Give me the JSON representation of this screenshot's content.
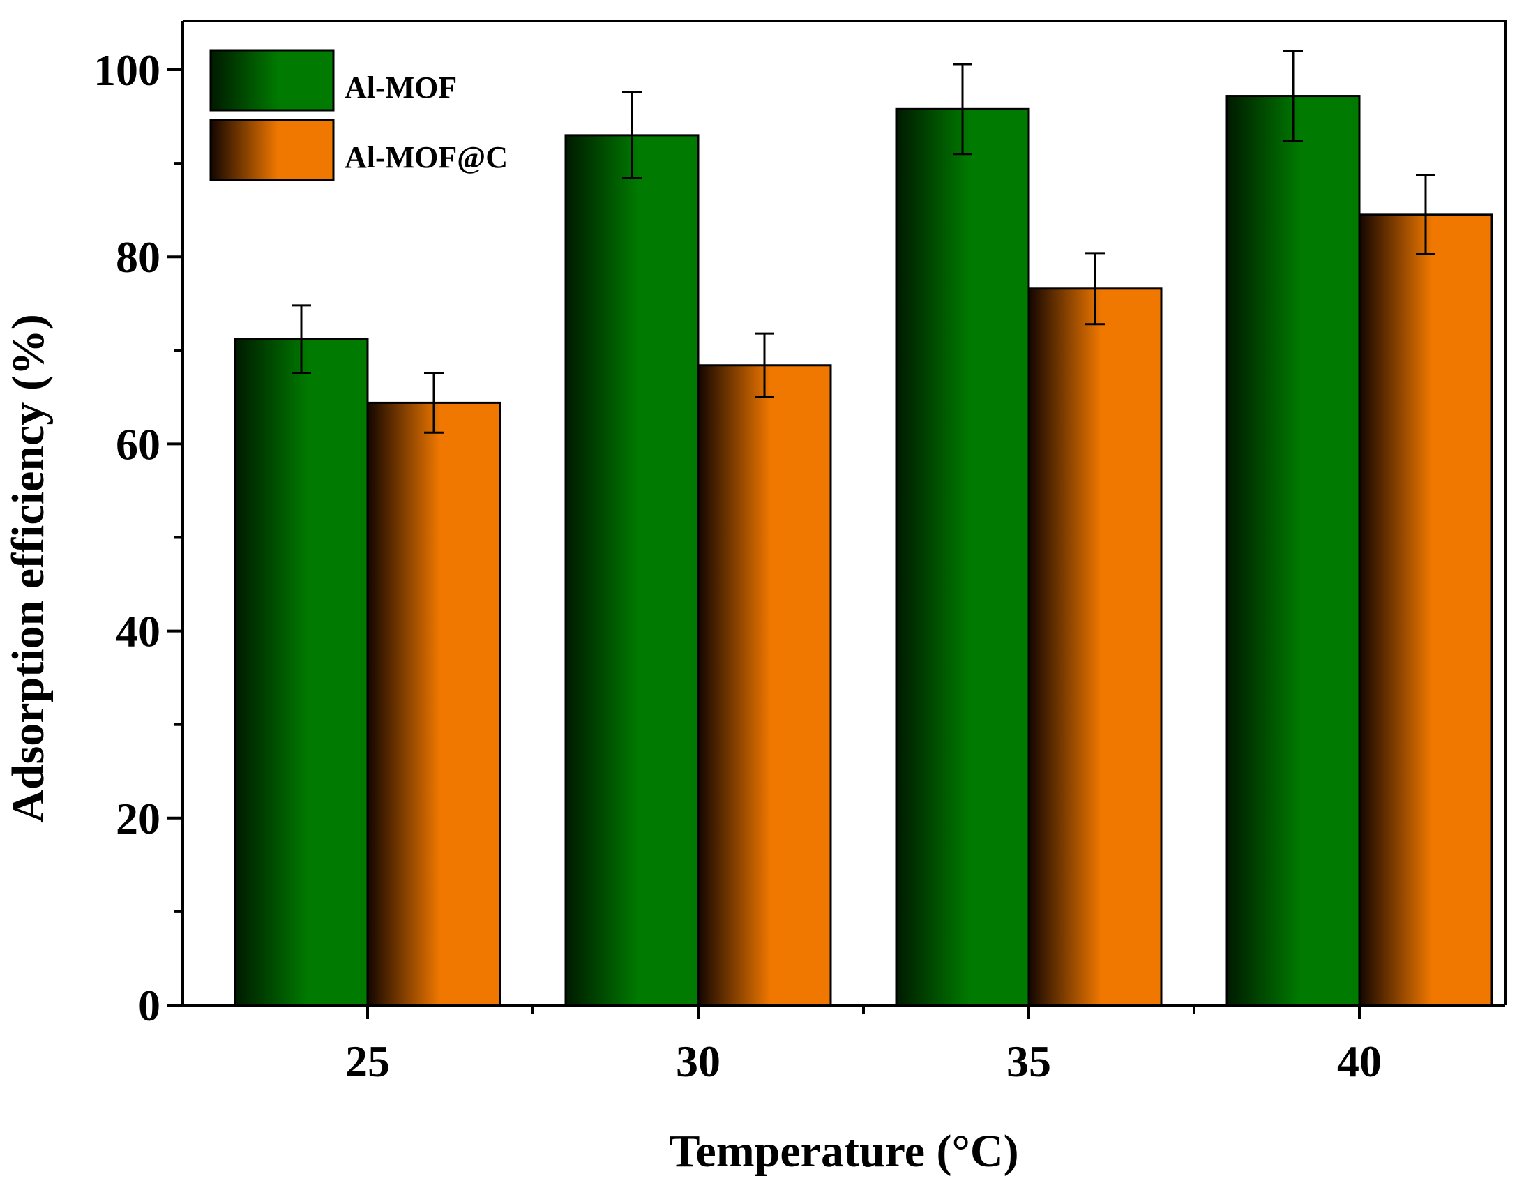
{
  "chart_data": {
    "type": "bar",
    "title": "",
    "xlabel": "Temperature (°C)",
    "ylabel": "Adsorption efficiency (%)",
    "categories": [
      "25",
      "30",
      "35",
      "40"
    ],
    "ylim": [
      0,
      100
    ],
    "yticks": [
      "0",
      "20",
      "40",
      "60",
      "80",
      "100"
    ],
    "ytick_values": [
      0,
      20,
      40,
      60,
      80,
      100
    ],
    "yminor_step": 10,
    "legend_position": "top-left",
    "series": [
      {
        "name": "Al-MOF",
        "values": [
          71.2,
          93.0,
          95.8,
          97.2
        ],
        "errors": [
          3.6,
          4.6,
          4.8,
          4.8
        ],
        "color_dark": "#001a00",
        "color": "#007a00"
      },
      {
        "name": "Al-MOF@C",
        "values": [
          64.4,
          68.4,
          76.6,
          84.5
        ],
        "errors": [
          3.2,
          3.4,
          3.8,
          4.2
        ],
        "color_dark": "#140600",
        "color": "#f07800"
      }
    ]
  }
}
